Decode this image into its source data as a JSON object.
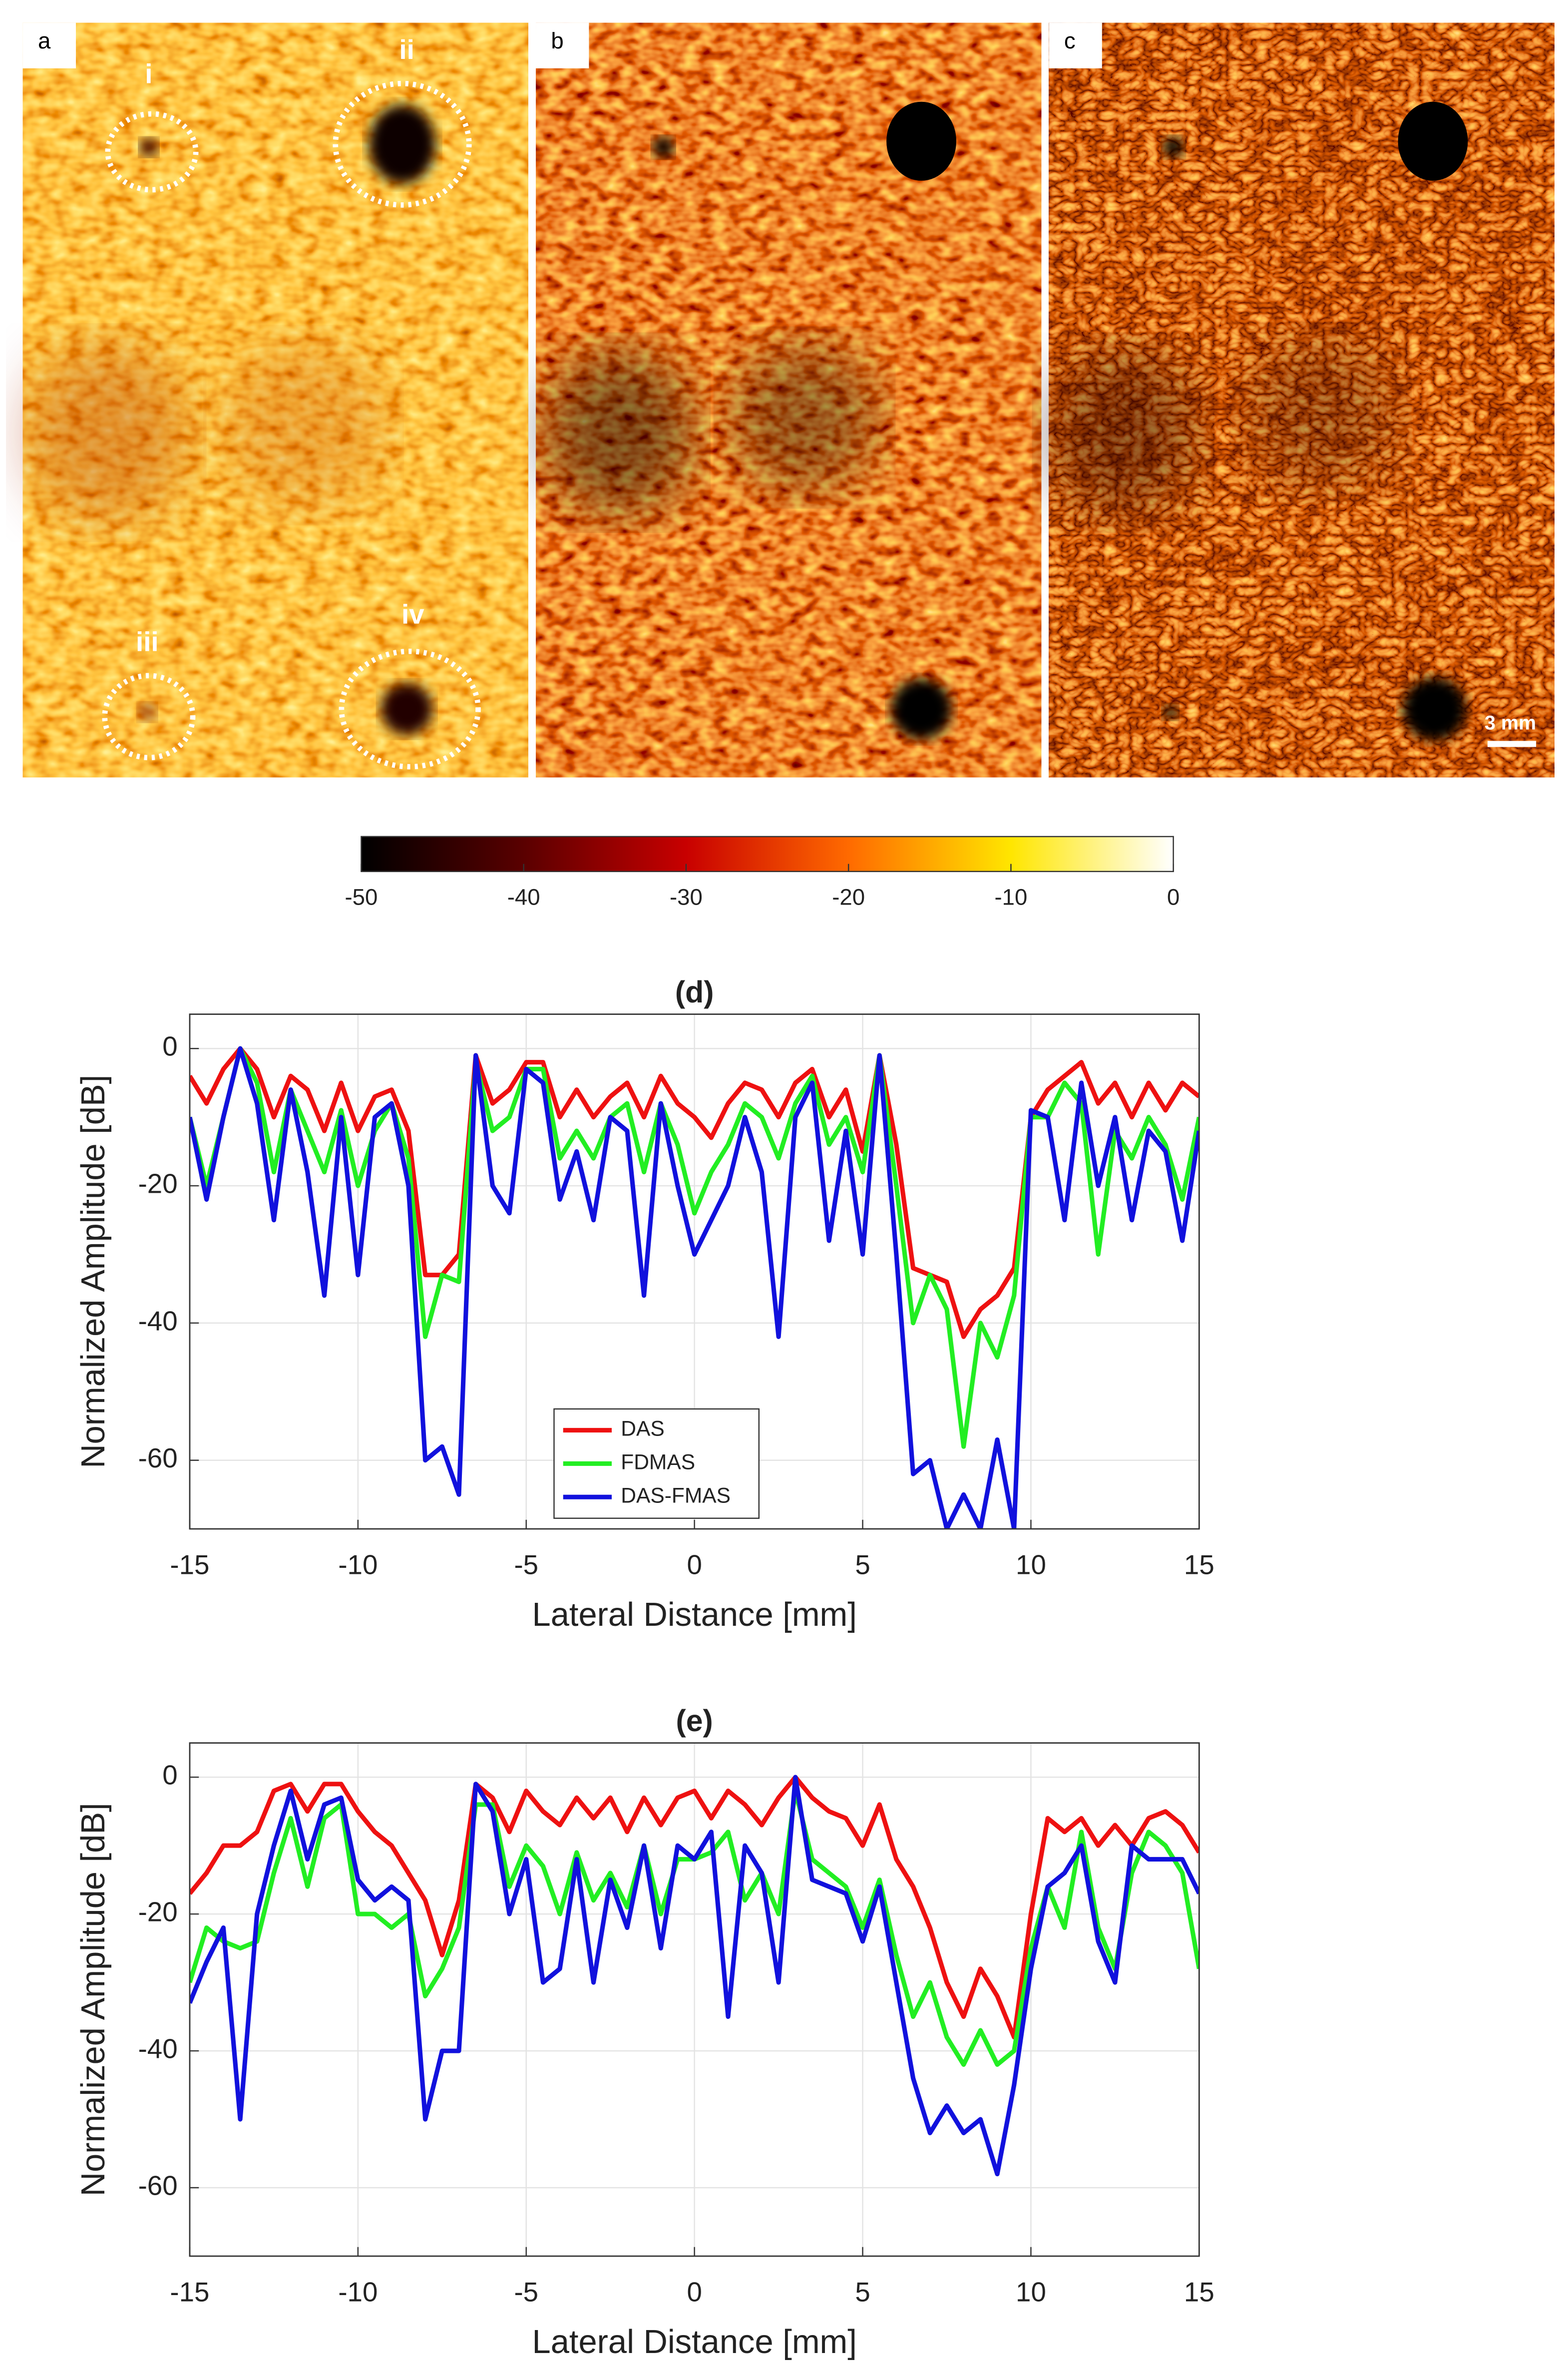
{
  "panels": [
    "a",
    "b",
    "c"
  ],
  "annotations": [
    "i",
    "ii",
    "iii",
    "iv"
  ],
  "scalebar": "3 mm",
  "colorbar": {
    "lim": [
      -50,
      0
    ],
    "ticks": [
      -50,
      -40,
      -30,
      -20,
      -10,
      0
    ]
  },
  "chart_data": [
    {
      "type": "line",
      "title": "(d)",
      "xlabel": "Lateral Distance [mm]",
      "ylabel": "Normalized Amplitude [dB]",
      "xlim": [
        -15,
        15
      ],
      "ylim": [
        -70,
        5
      ],
      "xticks": [
        -15,
        -10,
        -5,
        0,
        5,
        10,
        15
      ],
      "yticks": [
        -60,
        -40,
        -20,
        0
      ],
      "grid": true,
      "legend": "lower center",
      "x": [
        -15,
        -14.5,
        -14,
        -13.5,
        -13,
        -12.5,
        -12,
        -11.5,
        -11,
        -10.5,
        -10,
        -9.5,
        -9,
        -8.5,
        -8,
        -7.5,
        -7,
        -6.5,
        -6,
        -5.5,
        -5,
        -4.5,
        -4,
        -3.5,
        -3,
        -2.5,
        -2,
        -1.5,
        -1,
        -0.5,
        0,
        0.5,
        1,
        1.5,
        2,
        2.5,
        3,
        3.5,
        4,
        4.5,
        5,
        5.5,
        6,
        6.5,
        7,
        7.5,
        8,
        8.5,
        9,
        9.5,
        10,
        10.5,
        11,
        11.5,
        12,
        12.5,
        13,
        13.5,
        14,
        14.5,
        15
      ],
      "series": [
        {
          "name": "DAS",
          "color": "#ee1111",
          "values": [
            -4,
            -8,
            -3,
            0,
            -3,
            -10,
            -4,
            -6,
            -12,
            -5,
            -12,
            -7,
            -6,
            -12,
            -33,
            -33,
            -30,
            -1,
            -8,
            -6,
            -2,
            -2,
            -10,
            -6,
            -10,
            -7,
            -5,
            -10,
            -4,
            -8,
            -10,
            -13,
            -8,
            -5,
            -6,
            -10,
            -5,
            -3,
            -10,
            -6,
            -15,
            -1,
            -14,
            -32,
            -33,
            -34,
            -42,
            -38,
            -36,
            -32,
            -10,
            -6,
            -4,
            -2,
            -8,
            -5,
            -10,
            -5,
            -9,
            -5,
            -7
          ]
        },
        {
          "name": "FDMAS",
          "color": "#22ee22",
          "values": [
            -10,
            -20,
            -10,
            0,
            -5,
            -18,
            -6,
            -12,
            -18,
            -9,
            -20,
            -12,
            -8,
            -16,
            -42,
            -33,
            -34,
            -2,
            -12,
            -10,
            -3,
            -3,
            -16,
            -12,
            -16,
            -10,
            -8,
            -18,
            -8,
            -14,
            -24,
            -18,
            -14,
            -8,
            -10,
            -16,
            -8,
            -4,
            -14,
            -10,
            -18,
            -1,
            -20,
            -40,
            -33,
            -38,
            -58,
            -40,
            -45,
            -36,
            -10,
            -10,
            -5,
            -8,
            -30,
            -12,
            -16,
            -10,
            -14,
            -22,
            -10
          ]
        },
        {
          "name": "DAS-FMAS",
          "color": "#1111dd",
          "values": [
            -10,
            -22,
            -10,
            0,
            -8,
            -25,
            -6,
            -18,
            -36,
            -10,
            -33,
            -10,
            -8,
            -20,
            -60,
            -58,
            -65,
            -1,
            -20,
            -24,
            -3,
            -5,
            -22,
            -15,
            -25,
            -10,
            -12,
            -36,
            -8,
            -20,
            -30,
            -25,
            -20,
            -10,
            -18,
            -42,
            -10,
            -5,
            -28,
            -12,
            -30,
            -1,
            -30,
            -62,
            -60,
            -70,
            -65,
            -70,
            -57,
            -70,
            -9,
            -10,
            -25,
            -5,
            -20,
            -10,
            -25,
            -12,
            -15,
            -28,
            -12
          ]
        }
      ]
    },
    {
      "type": "line",
      "title": "(e)",
      "xlabel": "Lateral Distance [mm]",
      "ylabel": "Normalized Amplitude [dB]",
      "xlim": [
        -15,
        15
      ],
      "ylim": [
        -70,
        5
      ],
      "xticks": [
        -15,
        -10,
        -5,
        0,
        5,
        10,
        15
      ],
      "yticks": [
        -60,
        -40,
        -20,
        0
      ],
      "grid": true,
      "x": [
        -15,
        -14.5,
        -14,
        -13.5,
        -13,
        -12.5,
        -12,
        -11.5,
        -11,
        -10.5,
        -10,
        -9.5,
        -9,
        -8.5,
        -8,
        -7.5,
        -7,
        -6.5,
        -6,
        -5.5,
        -5,
        -4.5,
        -4,
        -3.5,
        -3,
        -2.5,
        -2,
        -1.5,
        -1,
        -0.5,
        0,
        0.5,
        1,
        1.5,
        2,
        2.5,
        3,
        3.5,
        4,
        4.5,
        5,
        5.5,
        6,
        6.5,
        7,
        7.5,
        8,
        8.5,
        9,
        9.5,
        10,
        10.5,
        11,
        11.5,
        12,
        12.5,
        13,
        13.5,
        14,
        14.5,
        15
      ],
      "series": [
        {
          "color": "#ee1111",
          "values": [
            -17,
            -14,
            -10,
            -10,
            -8,
            -2,
            -1,
            -5,
            -1,
            -1,
            -5,
            -8,
            -10,
            -14,
            -18,
            -26,
            -18,
            -1,
            -3,
            -8,
            -2,
            -5,
            -7,
            -3,
            -6,
            -3,
            -8,
            -3,
            -7,
            -3,
            -2,
            -6,
            -2,
            -4,
            -7,
            -3,
            0,
            -3,
            -5,
            -6,
            -10,
            -4,
            -12,
            -16,
            -22,
            -30,
            -35,
            -28,
            -32,
            -38,
            -20,
            -6,
            -8,
            -6,
            -10,
            -7,
            -10,
            -6,
            -5,
            -7,
            -11
          ]
        },
        {
          "color": "#22ee22",
          "values": [
            -30,
            -22,
            -24,
            -25,
            -24,
            -14,
            -6,
            -16,
            -6,
            -4,
            -20,
            -20,
            -22,
            -20,
            -32,
            -28,
            -22,
            -4,
            -4,
            -16,
            -10,
            -13,
            -20,
            -11,
            -18,
            -14,
            -19,
            -10,
            -20,
            -12,
            -12,
            -11,
            -8,
            -18,
            -14,
            -20,
            -2,
            -12,
            -14,
            -16,
            -22,
            -15,
            -26,
            -35,
            -30,
            -38,
            -42,
            -37,
            -42,
            -40,
            -25,
            -16,
            -22,
            -8,
            -22,
            -28,
            -14,
            -8,
            -10,
            -14,
            -28
          ]
        },
        {
          "color": "#1111dd",
          "values": [
            -33,
            -27,
            -22,
            -50,
            -20,
            -10,
            -2,
            -12,
            -4,
            -3,
            -15,
            -18,
            -16,
            -18,
            -50,
            -40,
            -40,
            -1,
            -5,
            -20,
            -12,
            -30,
            -28,
            -12,
            -30,
            -15,
            -22,
            -10,
            -25,
            -10,
            -12,
            -8,
            -35,
            -10,
            -14,
            -30,
            0,
            -15,
            -16,
            -17,
            -24,
            -16,
            -30,
            -44,
            -52,
            -48,
            -52,
            -50,
            -58,
            -45,
            -28,
            -16,
            -14,
            -10,
            -24,
            -30,
            -10,
            -12,
            -12,
            -12,
            -17
          ]
        }
      ]
    }
  ]
}
